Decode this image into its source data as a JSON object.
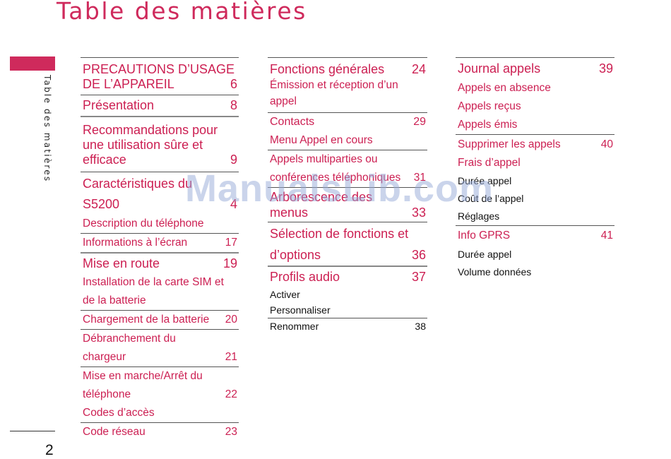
{
  "title": "Table des matières",
  "side_label": "Table des matières",
  "page_number": "2",
  "watermark": "ManualsLib.com",
  "columns": [
    {
      "entries": [
        {
          "line1": "PRECAUTIONS D’USAGE",
          "line2": "DE L’APPAREIL",
          "page": "6"
        },
        {
          "text": "Présentation",
          "page": "8"
        },
        {
          "line1": "Recommandations pour",
          "line2": "une utilisation sûre et",
          "line3": "efficace",
          "page": "9"
        },
        {
          "line1": "Caractéristiques du",
          "line2": "S5200",
          "page": "4"
        },
        {
          "text": "Description du téléphone",
          "page": ""
        },
        {
          "text": "Informations à l’écran",
          "page": "17"
        },
        {
          "text": "Mise en route",
          "page": "19"
        },
        {
          "text": "Installation de la carte SIM et",
          "page": ""
        },
        {
          "text": "de la batterie",
          "page": ""
        },
        {
          "text": "Chargement de la batterie",
          "page": "20"
        },
        {
          "line1": "Débranchement du",
          "line2": "chargeur",
          "page": "21"
        },
        {
          "line1": "Mise en marche/Arrêt du",
          "line2": "téléphone",
          "page": "22"
        },
        {
          "text": "Codes d’accès",
          "page": ""
        },
        {
          "text": "Code réseau",
          "page": "23"
        }
      ]
    },
    {
      "entries": [
        {
          "text": "Fonctions générales",
          "page": "24"
        },
        {
          "text": "Émission et réception d’un appel",
          "page": ""
        },
        {
          "text": "Contacts",
          "page": "29"
        },
        {
          "text": "Menu Appel en cours",
          "page": ""
        },
        {
          "line1": "Appels multiparties ou",
          "line2": "conférences téléphoniques",
          "page": "31"
        },
        {
          "line1": "Arborescence des",
          "line2": "menus",
          "page": "33"
        },
        {
          "line1": "Sélection de fonctions et",
          "line2": "d’options",
          "page": "36"
        },
        {
          "text": "Profils audio",
          "page": "37"
        },
        {
          "text": "Activer",
          "page": ""
        },
        {
          "text": "Personnaliser",
          "page": ""
        },
        {
          "text": "Renommer",
          "page": "38"
        }
      ]
    },
    {
      "entries": [
        {
          "text": "Journal appels",
          "page": "39"
        },
        {
          "text": "Appels en absence",
          "page": ""
        },
        {
          "text": "Appels reçus",
          "page": ""
        },
        {
          "text": "Appels émis",
          "page": ""
        },
        {
          "text": "Supprimer les appels",
          "page": "40"
        },
        {
          "text": "Frais d’appel",
          "page": ""
        },
        {
          "text": "Durée appel",
          "page": ""
        },
        {
          "text": "Coût de l’appel",
          "page": ""
        },
        {
          "text": "Réglages",
          "page": ""
        },
        {
          "text": "Info GPRS",
          "page": "41"
        },
        {
          "text": "Durée appel",
          "page": ""
        },
        {
          "text": "Volume données",
          "page": ""
        }
      ]
    }
  ]
}
